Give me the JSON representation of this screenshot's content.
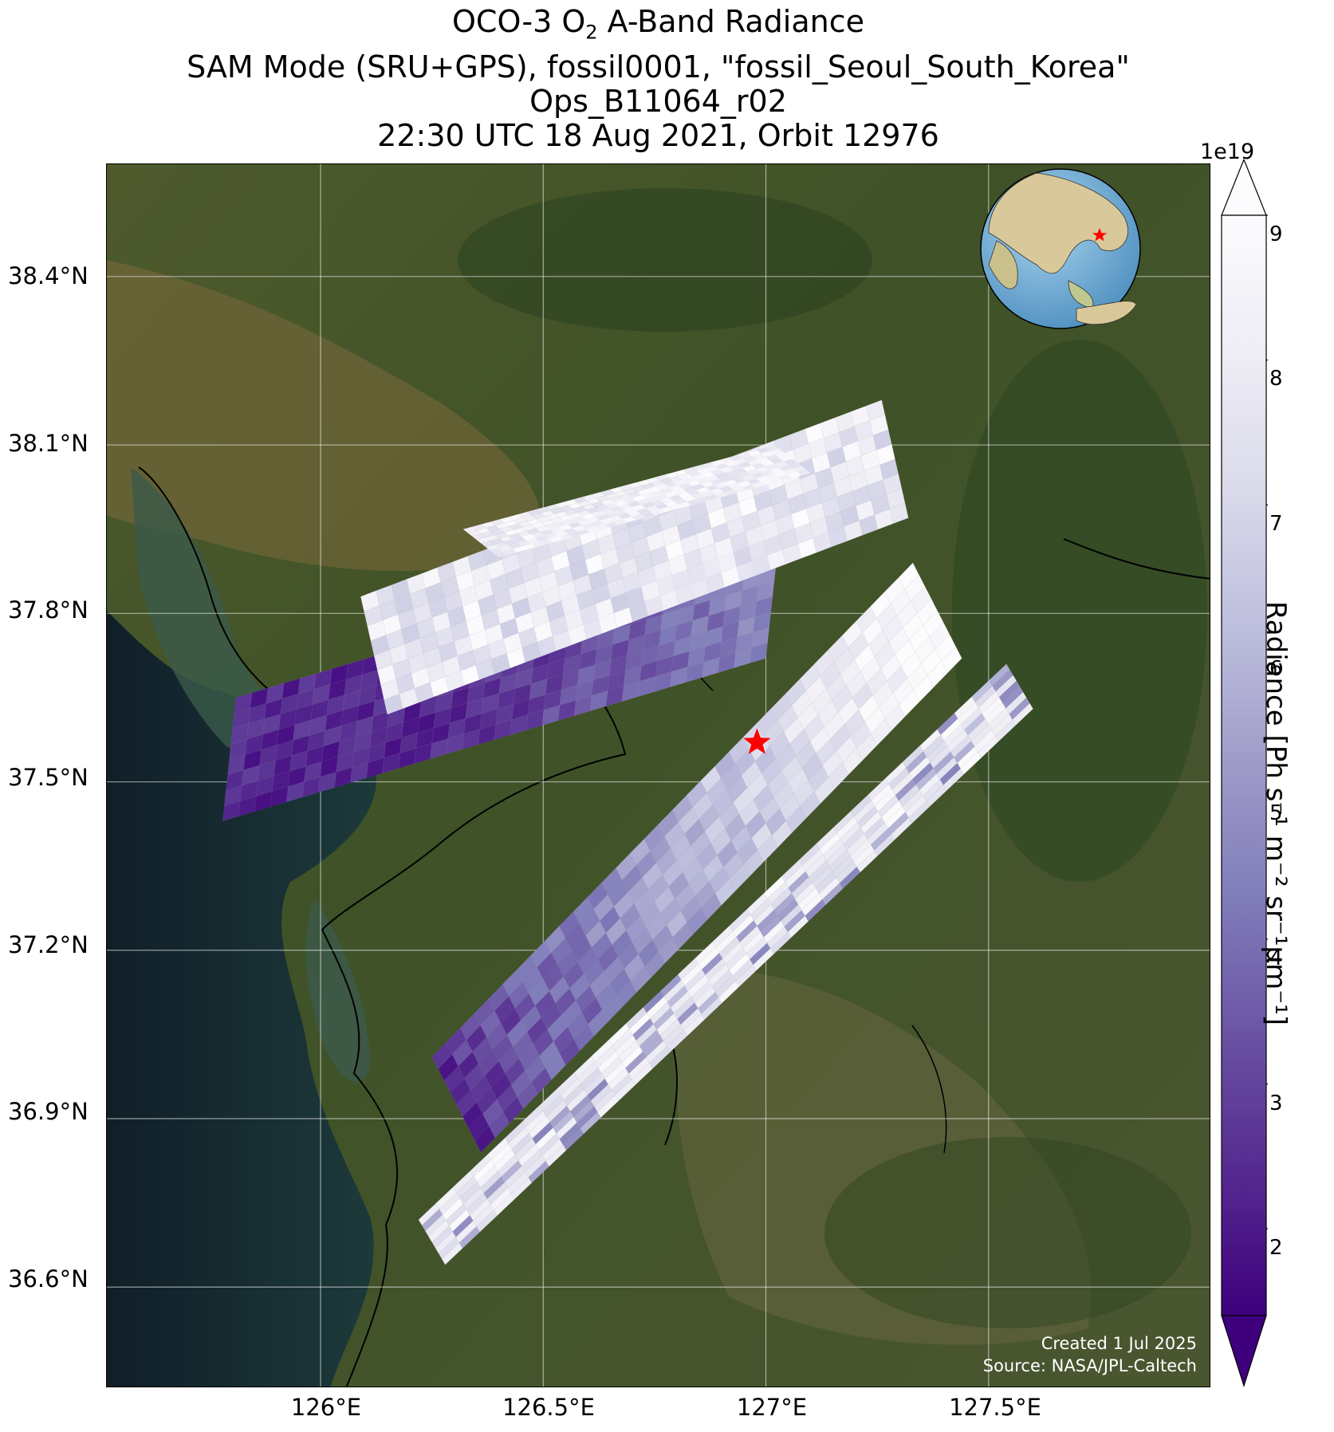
{
  "title": {
    "line1_prefix": "OCO-3 O",
    "line1_sub": "2",
    "line1_suffix": " A-Band Radiance",
    "line2": "SAM Mode (SRU+GPS), fossil0001, \"fossil_Seoul_South_Korea\"",
    "line3": "Ops_B11064_r02",
    "line4": "22:30 UTC 18 Aug 2021, Orbit 12976"
  },
  "axes": {
    "lat_labels": [
      "38.4°N",
      "38.1°N",
      "37.8°N",
      "37.5°N",
      "37.2°N",
      "36.9°N",
      "36.6°N"
    ],
    "lon_labels": [
      "126°E",
      "126.5°E",
      "127°E",
      "127.5°E"
    ]
  },
  "colorbar": {
    "multiplier": "1e19",
    "ticks": [
      "2",
      "3",
      "4",
      "5",
      "6",
      "7",
      "8",
      "9"
    ],
    "label": "Radiance [Ph s⁻¹ m⁻² sr⁻¹μm⁻¹]",
    "colors": [
      "#3f007d",
      "#54278f",
      "#6a51a3",
      "#807dba",
      "#9e9ac8",
      "#bcbddc",
      "#dadaeb",
      "#efedf5",
      "#fcfbfd"
    ]
  },
  "credit": {
    "line1": "Created 1 Jul 2025",
    "line2": "Source: NASA/JPL-Caltech"
  },
  "chart_data": {
    "type": "heatmap",
    "projection": "map",
    "xlim": [
      125.52,
      128.0
    ],
    "ylim": [
      36.42,
      38.6
    ],
    "lat_ticks": [
      38.4,
      38.1,
      37.8,
      37.5,
      37.2,
      36.9,
      36.6
    ],
    "lon_ticks": [
      126.0,
      126.5,
      127.0,
      127.5
    ],
    "vmin": 1.4e+19,
    "vmax": 9e+19,
    "colorbar_extend": "both",
    "target": {
      "lon": 126.98,
      "lat": 37.57,
      "marker": "star",
      "color": "#ff0000"
    },
    "inset_globe": {
      "center_lon": 127,
      "center_lat": 30,
      "placement": "top-right"
    }
  }
}
